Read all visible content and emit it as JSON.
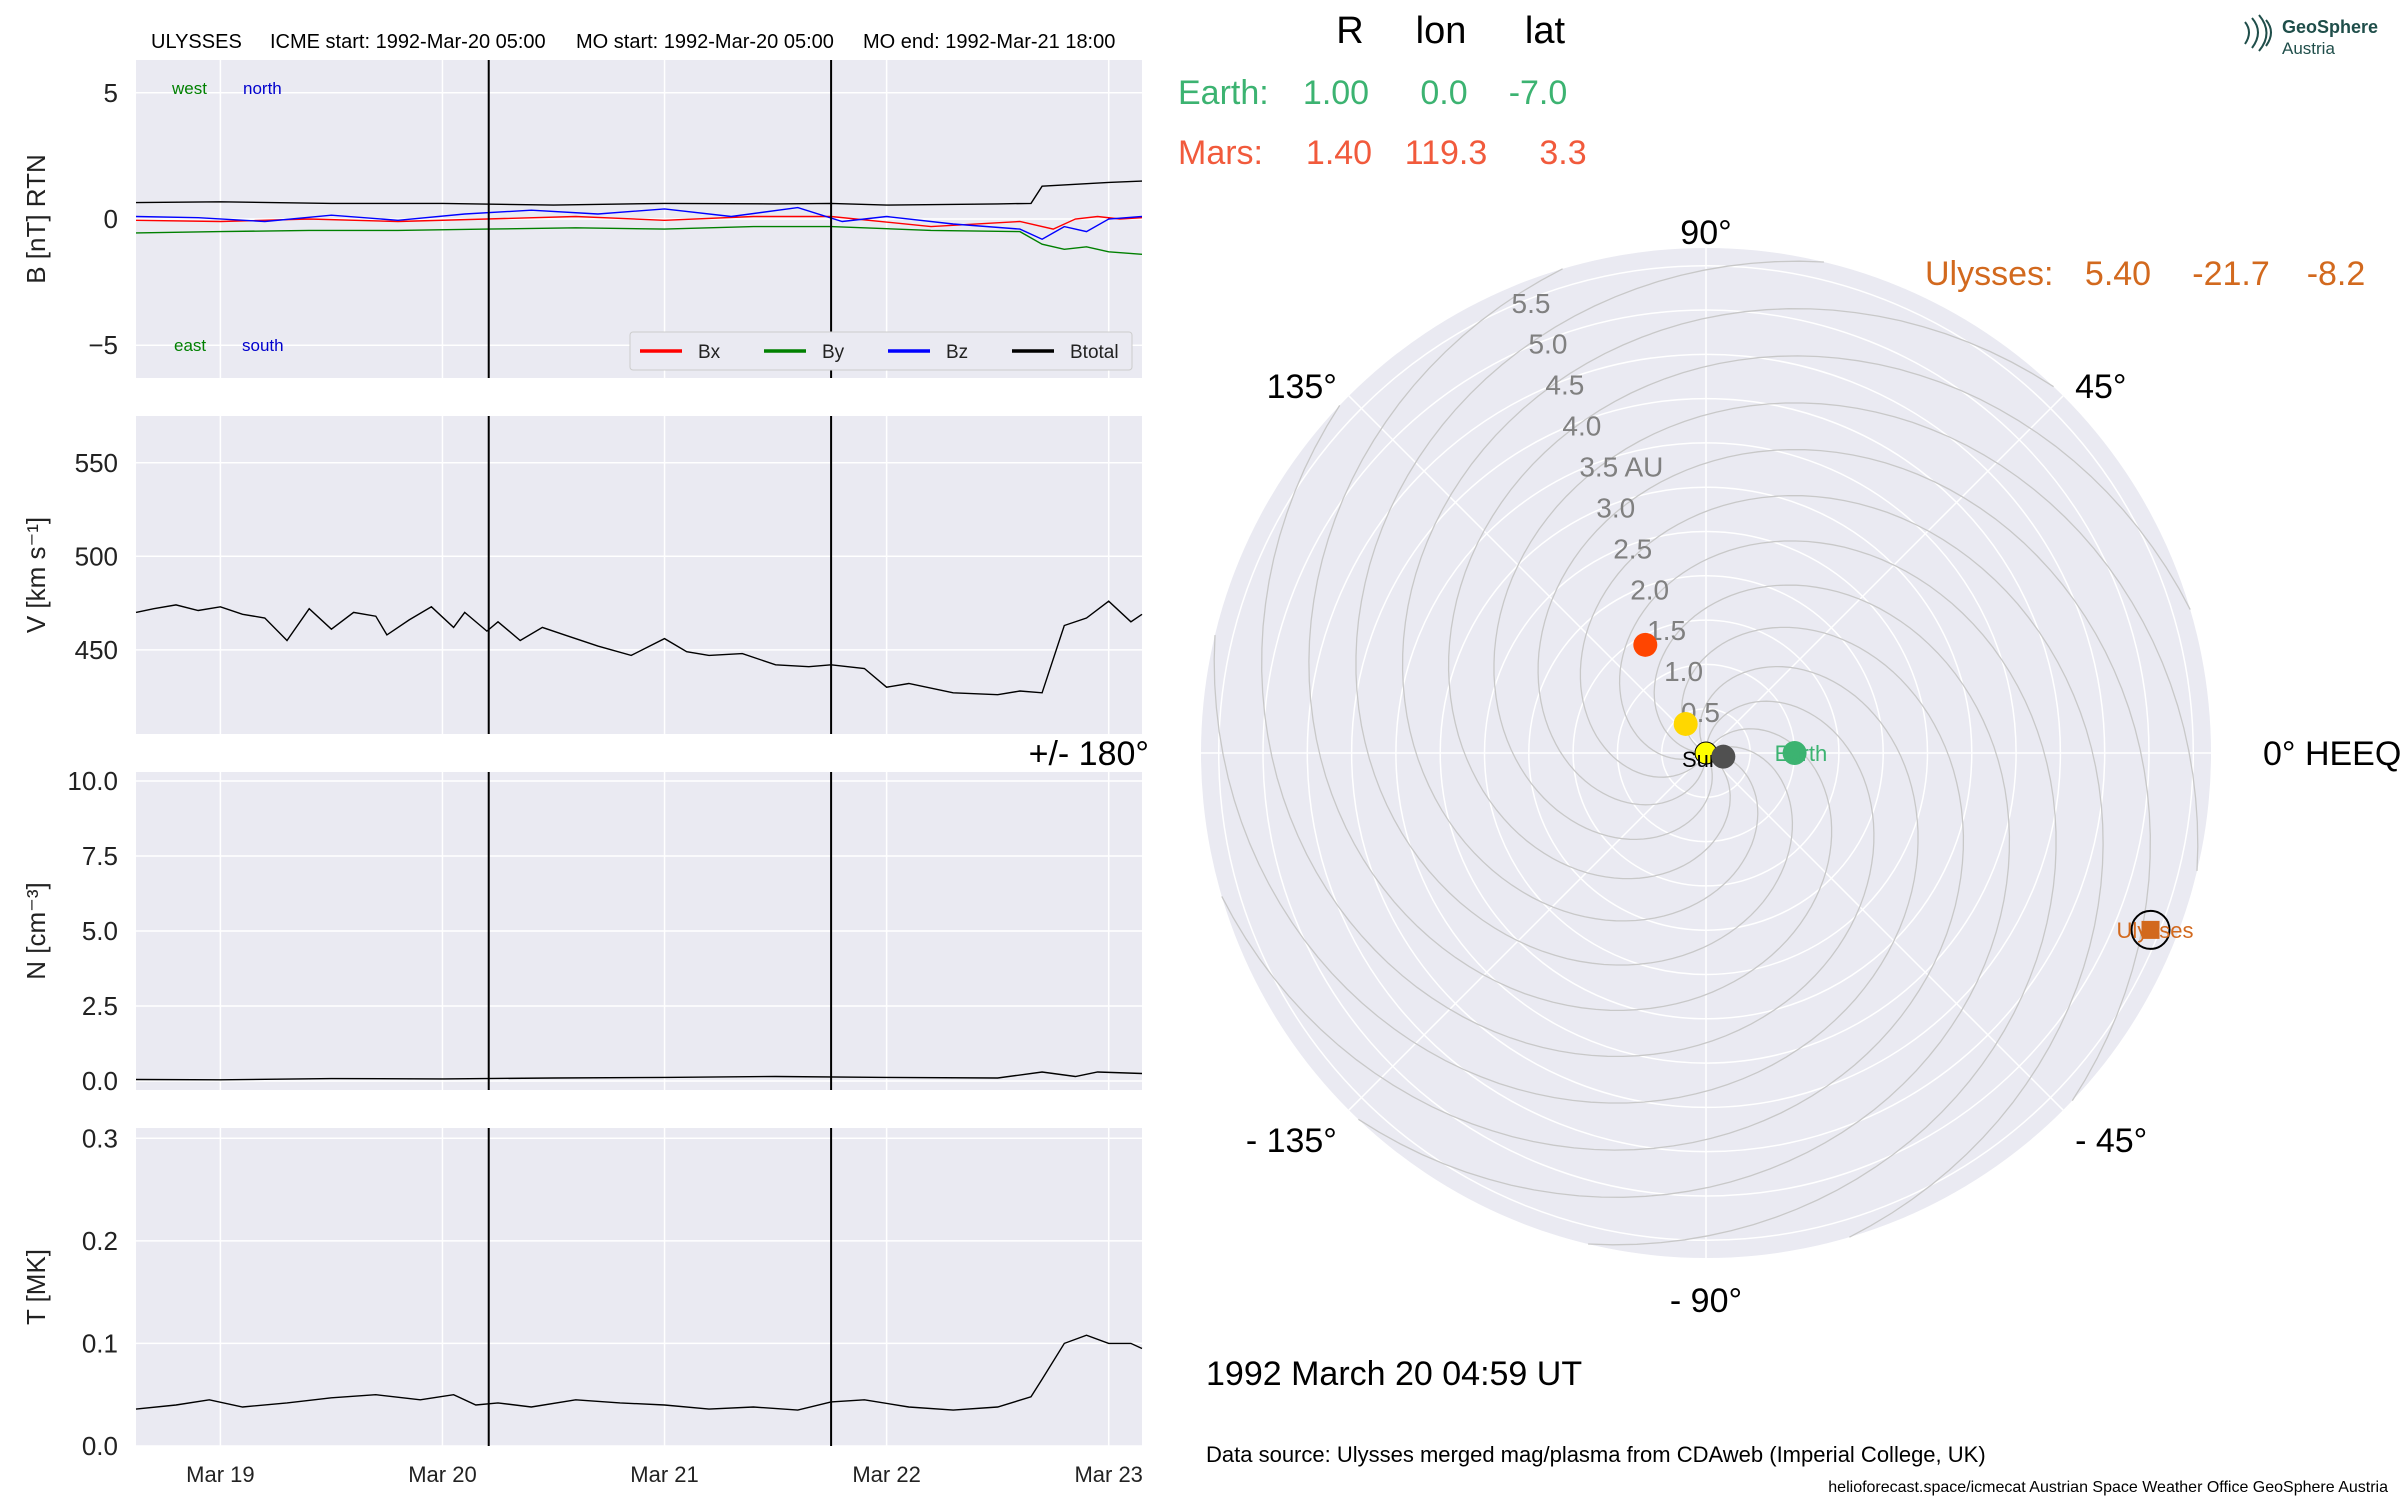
{
  "header": {
    "spacecraft": "ULYSSES",
    "icme_start": "ICME start: 1992-Mar-20 05:00",
    "mo_start": "MO start: 1992-Mar-20 05:00",
    "mo_end": "MO end: 1992-Mar-21 18:00"
  },
  "logo": {
    "line1": "GeoSphere",
    "line2": "Austria"
  },
  "position_table": {
    "headers": [
      "R",
      "lon",
      "lat"
    ],
    "rows": [
      {
        "name": "Earth:",
        "R": "1.00",
        "lon": "0.0",
        "lat": "-7.0",
        "color": "#3cb371"
      },
      {
        "name": "Mars:",
        "R": "1.40",
        "lon": "119.3",
        "lat": "3.3",
        "color": "#f15a3c"
      },
      {
        "name": "Ulysses:",
        "R": "5.40",
        "lon": "-21.7",
        "lat": "-8.2",
        "color": "#d2691e"
      }
    ]
  },
  "timestamp": "1992 March 20  04:59 UT",
  "data_source": "Data source: Ulysses merged mag/plasma from CDAweb (Imperial College, UK)",
  "footer": "helioforecast.space/icmecat   Austrian Space Weather Office   GeoSphere Austria",
  "chart_data": [
    {
      "type": "line",
      "panel": "magnetic-field",
      "ylabel": "B [nT] RTN",
      "ylim": [
        -6.3,
        6.3
      ],
      "yticks": [
        "5",
        "0",
        "−5"
      ],
      "ytick_values": [
        5,
        0,
        -5
      ],
      "annotations": {
        "west": "west",
        "north": "north",
        "east": "east",
        "south": "south"
      },
      "legend_position": "lower-right",
      "x_range_days": [
        18.62,
        23.15
      ],
      "vlines_days": [
        20.2083,
        21.75
      ],
      "series": [
        {
          "name": "Bx",
          "color": "#ff0000",
          "x": [
            18.62,
            19.0,
            19.4,
            19.8,
            20.2,
            20.6,
            21.0,
            21.4,
            21.75,
            22.2,
            22.6,
            22.75,
            22.85,
            22.95,
            23.05,
            23.15
          ],
          "values": [
            -0.05,
            -0.1,
            0.0,
            -0.1,
            0.0,
            0.1,
            -0.05,
            0.1,
            0.1,
            -0.3,
            -0.1,
            -0.4,
            0.0,
            0.1,
            0.0,
            0.05
          ]
        },
        {
          "name": "By",
          "color": "#008000",
          "x": [
            18.62,
            19.0,
            19.4,
            19.8,
            20.2,
            20.6,
            21.0,
            21.4,
            21.75,
            22.2,
            22.6,
            22.7,
            22.8,
            22.9,
            23.0,
            23.15
          ],
          "values": [
            -0.55,
            -0.5,
            -0.45,
            -0.45,
            -0.4,
            -0.35,
            -0.4,
            -0.3,
            -0.3,
            -0.45,
            -0.5,
            -1.0,
            -1.2,
            -1.1,
            -1.3,
            -1.4
          ]
        },
        {
          "name": "Bz",
          "color": "#0000ff",
          "x": [
            18.62,
            18.9,
            19.2,
            19.5,
            19.8,
            20.1,
            20.4,
            20.7,
            21.0,
            21.3,
            21.6,
            21.8,
            22.0,
            22.3,
            22.6,
            22.7,
            22.8,
            22.9,
            23.0,
            23.15
          ],
          "values": [
            0.1,
            0.05,
            -0.1,
            0.15,
            -0.05,
            0.2,
            0.35,
            0.2,
            0.4,
            0.1,
            0.45,
            -0.1,
            0.1,
            -0.2,
            -0.4,
            -0.8,
            -0.3,
            -0.5,
            0.0,
            0.1
          ]
        },
        {
          "name": "Btotal",
          "color": "#000000",
          "x": [
            18.62,
            19.0,
            19.5,
            20.0,
            20.5,
            21.0,
            21.5,
            21.75,
            22.0,
            22.5,
            22.65,
            22.7,
            23.0,
            23.15
          ],
          "values": [
            0.65,
            0.68,
            0.62,
            0.62,
            0.55,
            0.62,
            0.6,
            0.62,
            0.55,
            0.6,
            0.62,
            1.3,
            1.45,
            1.5
          ]
        }
      ]
    },
    {
      "type": "line",
      "panel": "speed",
      "ylabel": "V [km s⁻¹]",
      "ylim": [
        405,
        575
      ],
      "yticks": [
        "550",
        "500",
        "450"
      ],
      "ytick_values": [
        550,
        500,
        450
      ],
      "series": [
        {
          "name": "",
          "color": "#000000",
          "x": [
            18.62,
            18.7,
            18.8,
            18.9,
            19.0,
            19.1,
            19.2,
            19.3,
            19.4,
            19.5,
            19.6,
            19.7,
            19.75,
            19.85,
            19.95,
            20.05,
            20.1,
            20.2,
            20.25,
            20.35,
            20.45,
            20.55,
            20.7,
            20.85,
            21.0,
            21.1,
            21.2,
            21.35,
            21.5,
            21.65,
            21.75,
            21.9,
            22.0,
            22.1,
            22.3,
            22.5,
            22.6,
            22.7,
            22.8,
            22.9,
            23.0,
            23.1,
            23.15
          ],
          "values": [
            470,
            472,
            474,
            471,
            473,
            469,
            467,
            455,
            472,
            461,
            470,
            468,
            458,
            466,
            473,
            462,
            470,
            460,
            465,
            455,
            462,
            458,
            452,
            447,
            456,
            449,
            447,
            448,
            442,
            441,
            442,
            440,
            430,
            432,
            427,
            426,
            428,
            427,
            463,
            467,
            476,
            465,
            469
          ]
        }
      ]
    },
    {
      "type": "line",
      "panel": "density",
      "ylabel": "N [cm⁻³]",
      "ylim": [
        -0.3,
        10.3
      ],
      "yticks": [
        "10.0",
        "7.5",
        "5.0",
        "2.5",
        "0.0"
      ],
      "ytick_values": [
        10.0,
        7.5,
        5.0,
        2.5,
        0.0
      ],
      "series": [
        {
          "name": "",
          "color": "#000000",
          "x": [
            18.62,
            19.0,
            19.5,
            20.0,
            20.5,
            21.0,
            21.5,
            22.0,
            22.5,
            22.7,
            22.85,
            22.95,
            23.15
          ],
          "values": [
            0.05,
            0.04,
            0.08,
            0.07,
            0.1,
            0.12,
            0.15,
            0.12,
            0.1,
            0.3,
            0.15,
            0.3,
            0.25
          ]
        }
      ]
    },
    {
      "type": "line",
      "panel": "temperature",
      "ylabel": "T [MK]",
      "ylim": [
        0.0,
        0.31
      ],
      "yticks": [
        "0.3",
        "0.2",
        "0.1",
        "0.0"
      ],
      "ytick_values": [
        0.3,
        0.2,
        0.1,
        0.0
      ],
      "xtick_labels": [
        "Mar 19",
        "Mar 20",
        "Mar 21",
        "Mar 22",
        "Mar 23"
      ],
      "xtick_days": [
        19,
        20,
        21,
        22,
        23
      ],
      "series": [
        {
          "name": "",
          "color": "#000000",
          "x": [
            18.62,
            18.8,
            18.95,
            19.1,
            19.3,
            19.5,
            19.7,
            19.9,
            20.05,
            20.15,
            20.25,
            20.4,
            20.6,
            20.8,
            21.0,
            21.2,
            21.4,
            21.6,
            21.75,
            21.9,
            22.1,
            22.3,
            22.5,
            22.65,
            22.7,
            22.8,
            22.9,
            23.0,
            23.1,
            23.15
          ],
          "values": [
            0.036,
            0.04,
            0.045,
            0.038,
            0.042,
            0.047,
            0.05,
            0.045,
            0.05,
            0.04,
            0.042,
            0.038,
            0.045,
            0.042,
            0.04,
            0.036,
            0.038,
            0.035,
            0.043,
            0.045,
            0.038,
            0.035,
            0.038,
            0.048,
            0.065,
            0.1,
            0.108,
            0.1,
            0.1,
            0.095
          ]
        }
      ]
    },
    {
      "type": "scatter",
      "panel": "polar-orbit",
      "coordinate_system": "HEEQ",
      "r_max_au": 5.7,
      "r_ticks": [
        "0.5",
        "1.0",
        "1.5",
        "2.0",
        "2.5",
        "3.0",
        "3.5 AU",
        "4.0",
        "4.5",
        "5.0",
        "5.5"
      ],
      "r_tick_values": [
        0.5,
        1.0,
        1.5,
        2.0,
        2.5,
        3.0,
        3.5,
        4.0,
        4.5,
        5.0,
        5.5
      ],
      "angle_labels": [
        "0° HEEQ",
        "45°",
        "90°",
        "135°",
        "+/- 180°",
        "- 135°",
        "- 90°",
        "- 45°"
      ],
      "angle_values": [
        0,
        45,
        90,
        135,
        180,
        225,
        270,
        315
      ],
      "points": [
        {
          "name": "Sun",
          "r": 0.0,
          "lon": 0.0,
          "color": "#ffff00",
          "label": "Sun"
        },
        {
          "name": "Earth",
          "r": 1.0,
          "lon": 0.0,
          "color": "#3cb371",
          "label": "Earth"
        },
        {
          "name": "Mars",
          "r": 1.4,
          "lon": 119.3,
          "color": "#ff4500",
          "label": ""
        },
        {
          "name": "Ulysses",
          "r": 5.4,
          "lon": -21.7,
          "color": "#d2691e",
          "label": "Ulysses"
        },
        {
          "name": "Mercury",
          "r": 0.4,
          "lon": 125.0,
          "color": "#ffd700",
          "label": ""
        },
        {
          "name": "Venus",
          "r": 0.2,
          "lon": -12.0,
          "color": "#505050",
          "label": ""
        }
      ]
    }
  ]
}
